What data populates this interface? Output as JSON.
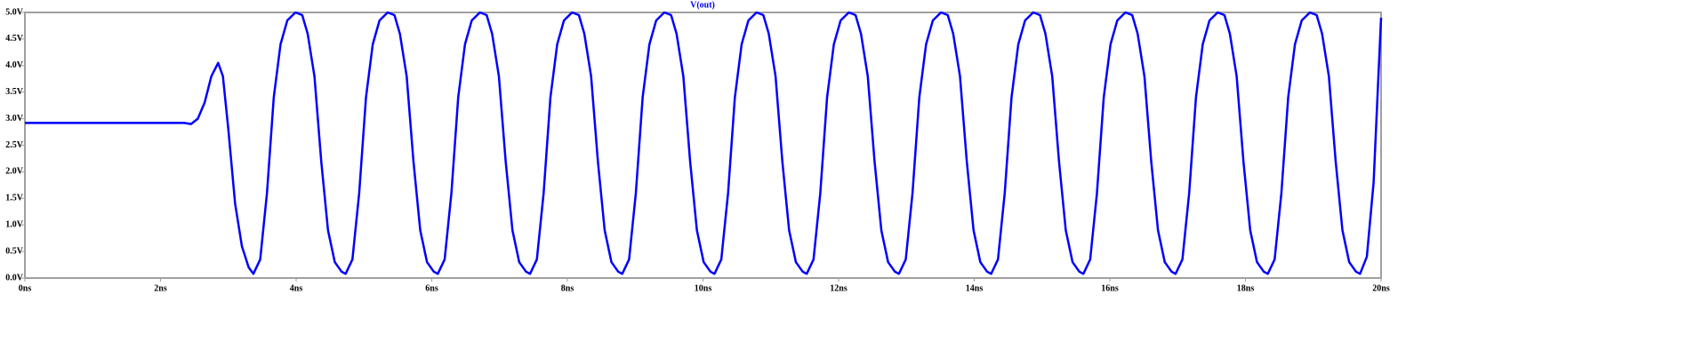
{
  "chart_data": {
    "type": "line",
    "x": [
      0,
      2.35,
      2.45,
      2.55,
      2.65,
      2.75,
      2.85,
      2.92,
      3.0,
      3.1,
      3.2,
      3.3,
      3.37,
      3.47,
      3.57,
      3.67,
      3.77,
      3.87,
      3.99,
      4.09,
      4.17,
      4.27,
      4.37,
      4.47,
      4.57,
      4.67,
      4.73,
      4.83,
      4.93,
      5.03,
      5.13,
      5.23,
      5.35,
      5.45,
      5.53,
      5.63,
      5.73,
      5.83,
      5.93,
      6.03,
      6.09,
      6.19,
      6.29,
      6.39,
      6.49,
      6.59,
      6.71,
      6.81,
      6.89,
      6.99,
      7.09,
      7.19,
      7.29,
      7.39,
      7.45,
      7.55,
      7.65,
      7.75,
      7.85,
      7.95,
      8.07,
      8.17,
      8.25,
      8.35,
      8.45,
      8.55,
      8.65,
      8.75,
      8.81,
      8.91,
      9.01,
      9.11,
      9.21,
      9.31,
      9.43,
      9.53,
      9.61,
      9.71,
      9.81,
      9.91,
      10.01,
      10.11,
      10.17,
      10.27,
      10.37,
      10.47,
      10.57,
      10.67,
      10.79,
      10.89,
      10.97,
      11.07,
      11.17,
      11.27,
      11.37,
      11.47,
      11.53,
      11.63,
      11.73,
      11.83,
      11.93,
      12.03,
      12.15,
      12.25,
      12.33,
      12.43,
      12.53,
      12.63,
      12.73,
      12.83,
      12.89,
      12.99,
      13.09,
      13.19,
      13.29,
      13.39,
      13.51,
      13.61,
      13.69,
      13.79,
      13.89,
      13.99,
      14.09,
      14.19,
      14.25,
      14.35,
      14.45,
      14.55,
      14.65,
      14.75,
      14.87,
      14.97,
      15.05,
      15.15,
      15.25,
      15.35,
      15.45,
      15.55,
      15.61,
      15.71,
      15.81,
      15.91,
      16.01,
      16.11,
      16.23,
      16.33,
      16.41,
      16.51,
      16.61,
      16.71,
      16.81,
      16.91,
      16.97,
      17.07,
      17.17,
      17.27,
      17.37,
      17.47,
      17.59,
      17.69,
      17.77,
      17.87,
      17.97,
      18.07,
      18.17,
      18.27,
      18.33,
      18.43,
      18.53,
      18.63,
      18.73,
      18.83,
      18.95,
      19.05,
      19.13,
      19.23,
      19.33,
      19.43,
      19.53,
      19.63,
      19.69,
      19.79,
      19.89,
      19.95,
      20.0
    ],
    "series": [
      {
        "name": "V(out)",
        "color": "#0000ff",
        "values": [
          2.92,
          2.92,
          2.9,
          3.0,
          3.3,
          3.8,
          4.05,
          3.8,
          2.8,
          1.4,
          0.6,
          0.2,
          0.08,
          0.35,
          1.6,
          3.4,
          4.4,
          4.85,
          5.0,
          4.95,
          4.6,
          3.8,
          2.2,
          0.9,
          0.3,
          0.12,
          0.08,
          0.35,
          1.6,
          3.4,
          4.4,
          4.85,
          5.0,
          4.95,
          4.6,
          3.8,
          2.2,
          0.9,
          0.3,
          0.12,
          0.08,
          0.35,
          1.6,
          3.4,
          4.4,
          4.85,
          5.0,
          4.95,
          4.6,
          3.8,
          2.2,
          0.9,
          0.3,
          0.12,
          0.08,
          0.35,
          1.6,
          3.4,
          4.4,
          4.85,
          5.0,
          4.95,
          4.6,
          3.8,
          2.2,
          0.9,
          0.3,
          0.12,
          0.08,
          0.35,
          1.6,
          3.4,
          4.4,
          4.85,
          5.0,
          4.95,
          4.6,
          3.8,
          2.2,
          0.9,
          0.3,
          0.12,
          0.08,
          0.35,
          1.6,
          3.4,
          4.4,
          4.85,
          5.0,
          4.95,
          4.6,
          3.8,
          2.2,
          0.9,
          0.3,
          0.12,
          0.08,
          0.35,
          1.6,
          3.4,
          4.4,
          4.85,
          5.0,
          4.95,
          4.6,
          3.8,
          2.2,
          0.9,
          0.3,
          0.12,
          0.08,
          0.35,
          1.6,
          3.4,
          4.4,
          4.85,
          5.0,
          4.95,
          4.6,
          3.8,
          2.2,
          0.9,
          0.3,
          0.12,
          0.08,
          0.35,
          1.6,
          3.4,
          4.4,
          4.85,
          5.0,
          4.95,
          4.6,
          3.8,
          2.2,
          0.9,
          0.3,
          0.12,
          0.08,
          0.35,
          1.6,
          3.4,
          4.4,
          4.85,
          5.0,
          4.95,
          4.6,
          3.8,
          2.2,
          0.9,
          0.3,
          0.12,
          0.08,
          0.35,
          1.6,
          3.4,
          4.4,
          4.85,
          5.0,
          4.95,
          4.6,
          3.8,
          2.2,
          0.9,
          0.3,
          0.12,
          0.08,
          0.35,
          1.6,
          3.4,
          4.4,
          4.85,
          5.0,
          4.95,
          4.6,
          3.8,
          2.2,
          0.9,
          0.3,
          0.12,
          0.08,
          0.4,
          1.8,
          3.5,
          4.9
        ]
      }
    ],
    "xlim": [
      0,
      20
    ],
    "ylim": [
      0,
      5
    ],
    "xticks": [
      {
        "value": 0,
        "label": "0ns"
      },
      {
        "value": 2,
        "label": "2ns"
      },
      {
        "value": 4,
        "label": "4ns"
      },
      {
        "value": 6,
        "label": "6ns"
      },
      {
        "value": 8,
        "label": "8ns"
      },
      {
        "value": 10,
        "label": "10ns"
      },
      {
        "value": 12,
        "label": "12ns"
      },
      {
        "value": 14,
        "label": "14ns"
      },
      {
        "value": 16,
        "label": "16ns"
      },
      {
        "value": 18,
        "label": "18ns"
      },
      {
        "value": 20,
        "label": "20ns"
      }
    ],
    "yticks": [
      {
        "value": 0,
        "label": "0.0V"
      },
      {
        "value": 0.5,
        "label": "0.5V"
      },
      {
        "value": 1,
        "label": "1.0V"
      },
      {
        "value": 1.5,
        "label": "1.5V"
      },
      {
        "value": 2,
        "label": "2.0V"
      },
      {
        "value": 2.5,
        "label": "2.5V"
      },
      {
        "value": 3,
        "label": "3.0V"
      },
      {
        "value": 3.5,
        "label": "3.5V"
      },
      {
        "value": 4,
        "label": "4.0V"
      },
      {
        "value": 4.5,
        "label": "4.5V"
      },
      {
        "value": 5,
        "label": "5.0V"
      }
    ]
  }
}
